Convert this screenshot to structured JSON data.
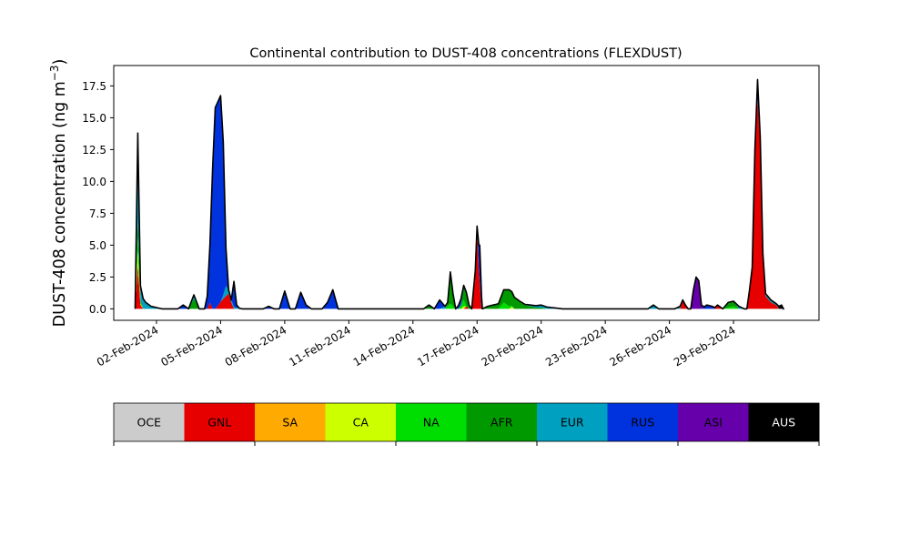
{
  "chart_data": {
    "type": "area",
    "title": "Continental contribution to DUST-408 concentrations (FLEXDUST)",
    "ylabel": "DUST-408 concentration (ng m",
    "ylabel_sup": "−3",
    "ylabel_close": ")",
    "xlabel": "",
    "ylim": [
      -0.9,
      19.1
    ],
    "xlim": [
      "2024-01-31",
      "2024-03-04"
    ],
    "grid": false,
    "y_ticks": [
      0.0,
      2.5,
      5.0,
      7.5,
      10.0,
      12.5,
      15.0,
      17.5
    ],
    "y_tick_labels": [
      "0.0",
      "2.5",
      "5.0",
      "7.5",
      "10.0",
      "12.5",
      "15.0",
      "17.5"
    ],
    "x_ticks": [
      "2024-02-02",
      "2024-02-05",
      "2024-02-08",
      "2024-02-11",
      "2024-02-14",
      "2024-02-17",
      "2024-02-20",
      "2024-02-23",
      "2024-02-26",
      "2024-02-29"
    ],
    "x_tick_labels": [
      "02-Feb-2024",
      "05-Feb-2024",
      "08-Feb-2024",
      "11-Feb-2024",
      "14-Feb-2024",
      "17-Feb-2024",
      "20-Feb-2024",
      "23-Feb-2024",
      "26-Feb-2024",
      "29-Feb-2024"
    ],
    "categories": [
      "OCE",
      "GNL",
      "SA",
      "CA",
      "NA",
      "AFR",
      "EUR",
      "RUS",
      "ASI",
      "AUS"
    ],
    "colors": [
      "#cccccc",
      "#e60000",
      "#ffaa00",
      "#ccff00",
      "#00dd00",
      "#009900",
      "#00a0c0",
      "#0033dd",
      "#6600aa",
      "#000000"
    ],
    "legend_text_colors": [
      "#000000",
      "#000000",
      "#000000",
      "#000000",
      "#000000",
      "#000000",
      "#000000",
      "#000000",
      "#000000",
      "#ffffff"
    ],
    "legend_placement": "bottom",
    "series": [
      {
        "name": "GNL",
        "points": [
          [
            "2024-02-01T00:00",
            0
          ],
          [
            "2024-02-01T03:00",
            3.5
          ],
          [
            "2024-02-01T06:00",
            0.3
          ],
          [
            "2024-02-01T09:00",
            0
          ],
          [
            "2024-02-04T09:00",
            0
          ],
          [
            "2024-02-04T12:00",
            0.5
          ],
          [
            "2024-02-04T15:00",
            0
          ],
          [
            "2024-02-04T18:00",
            0
          ],
          [
            "2024-02-05T03:00",
            0.8
          ],
          [
            "2024-02-05T09:00",
            1.2
          ],
          [
            "2024-02-05T12:00",
            0.5
          ],
          [
            "2024-02-05T15:00",
            0
          ],
          [
            "2024-02-16T09:00",
            0
          ],
          [
            "2024-02-16T12:00",
            0.2
          ],
          [
            "2024-02-16T15:00",
            0
          ],
          [
            "2024-02-16T18:00",
            0
          ],
          [
            "2024-02-16T22:00",
            3.0
          ],
          [
            "2024-02-17T00:00",
            6.5
          ],
          [
            "2024-02-17T02:00",
            3.0
          ],
          [
            "2024-02-17T05:00",
            0
          ],
          [
            "2024-02-26T12:00",
            0
          ],
          [
            "2024-02-26T15:00",
            0.6
          ],
          [
            "2024-02-26T21:00",
            0
          ],
          [
            "2024-02-28T03:00",
            0
          ],
          [
            "2024-02-28T06:00",
            0.3
          ],
          [
            "2024-02-28T12:00",
            0
          ],
          [
            "2024-02-29T15:00",
            0
          ],
          [
            "2024-02-29T21:00",
            3.0
          ],
          [
            "2024-03-01T00:00",
            12.0
          ],
          [
            "2024-03-01T03:00",
            16.5
          ],
          [
            "2024-03-01T06:00",
            13.0
          ],
          [
            "2024-03-01T09:00",
            4.0
          ],
          [
            "2024-03-01T12:00",
            1.0
          ],
          [
            "2024-03-01T18:00",
            0.5
          ],
          [
            "2024-03-02T00:00",
            0.3
          ],
          [
            "2024-03-02T03:00",
            0
          ]
        ]
      },
      {
        "name": "CA",
        "points": [
          [
            "2024-02-01T00:00",
            0
          ],
          [
            "2024-02-01T03:00",
            1.0
          ],
          [
            "2024-02-01T06:00",
            0.1
          ],
          [
            "2024-02-01T09:00",
            0
          ],
          [
            "2024-02-16T06:00",
            0
          ],
          [
            "2024-02-16T09:00",
            0.2
          ],
          [
            "2024-02-16T12:00",
            0
          ],
          [
            "2024-02-18T12:00",
            0
          ],
          [
            "2024-02-18T15:00",
            0.15
          ],
          [
            "2024-02-18T18:00",
            0
          ]
        ]
      },
      {
        "name": "NA",
        "points": [
          [
            "2024-02-01T00:00",
            0
          ],
          [
            "2024-02-01T03:00",
            1.0
          ],
          [
            "2024-02-01T06:00",
            0.1
          ],
          [
            "2024-02-01T09:00",
            0
          ],
          [
            "2024-02-15T12:00",
            0
          ],
          [
            "2024-02-15T18:00",
            0.4
          ],
          [
            "2024-02-16T00:00",
            0
          ],
          [
            "2024-02-16T03:00",
            0
          ],
          [
            "2024-02-16T06:00",
            0.3
          ],
          [
            "2024-02-16T09:00",
            0.5
          ],
          [
            "2024-02-16T12:00",
            0
          ],
          [
            "2024-02-18T00:00",
            0
          ],
          [
            "2024-02-18T06:00",
            0.5
          ],
          [
            "2024-02-18T12:00",
            0.2
          ],
          [
            "2024-02-18T18:00",
            0
          ],
          [
            "2024-02-28T12:00",
            0
          ],
          [
            "2024-02-28T18:00",
            0.1
          ],
          [
            "2024-02-29T00:00",
            0.2
          ],
          [
            "2024-02-29T06:00",
            0
          ]
        ]
      },
      {
        "name": "AFR",
        "points": [
          [
            "2024-02-01T00:00",
            0
          ],
          [
            "2024-02-01T03:00",
            1.5
          ],
          [
            "2024-02-01T06:00",
            0.2
          ],
          [
            "2024-02-01T09:00",
            0
          ],
          [
            "2024-02-03T12:00",
            0
          ],
          [
            "2024-02-03T18:00",
            0.8
          ],
          [
            "2024-02-04T00:00",
            0
          ],
          [
            "2024-02-14T12:00",
            0
          ],
          [
            "2024-02-14T18:00",
            0.3
          ],
          [
            "2024-02-15T00:00",
            0
          ],
          [
            "2024-02-15T12:00",
            0
          ],
          [
            "2024-02-15T15:00",
            0.2
          ],
          [
            "2024-02-15T18:00",
            2.5
          ],
          [
            "2024-02-15T21:00",
            1.0
          ],
          [
            "2024-02-16T00:00",
            0
          ],
          [
            "2024-02-16T06:00",
            0
          ],
          [
            "2024-02-16T09:00",
            0.9
          ],
          [
            "2024-02-16T12:00",
            1.1
          ],
          [
            "2024-02-16T15:00",
            0.3
          ],
          [
            "2024-02-16T18:00",
            0
          ],
          [
            "2024-02-17T06:00",
            0
          ],
          [
            "2024-02-17T12:00",
            0.2
          ],
          [
            "2024-02-17T18:00",
            0.3
          ],
          [
            "2024-02-18T00:00",
            0.4
          ],
          [
            "2024-02-18T06:00",
            1.0
          ],
          [
            "2024-02-18T12:00",
            1.3
          ],
          [
            "2024-02-18T18:00",
            0.9
          ],
          [
            "2024-02-19T00:00",
            0.6
          ],
          [
            "2024-02-19T06:00",
            0.3
          ],
          [
            "2024-02-19T12:00",
            0.2
          ],
          [
            "2024-02-19T18:00",
            0.1
          ],
          [
            "2024-02-20T00:00",
            0.1
          ],
          [
            "2024-02-20T06:00",
            0
          ],
          [
            "2024-02-28T12:00",
            0
          ],
          [
            "2024-02-28T18:00",
            0.4
          ],
          [
            "2024-02-29T00:00",
            0.4
          ],
          [
            "2024-02-29T06:00",
            0
          ]
        ]
      },
      {
        "name": "EUR",
        "points": [
          [
            "2024-02-01T00:00",
            0
          ],
          [
            "2024-02-01T03:00",
            3.5
          ],
          [
            "2024-02-01T06:00",
            1.0
          ],
          [
            "2024-02-01T09:00",
            0.8
          ],
          [
            "2024-02-01T12:00",
            0.5
          ],
          [
            "2024-02-01T18:00",
            0.2
          ],
          [
            "2024-02-02T00:00",
            0.1
          ],
          [
            "2024-02-02T06:00",
            0
          ],
          [
            "2024-02-03T12:00",
            0
          ],
          [
            "2024-02-03T18:00",
            0.2
          ],
          [
            "2024-02-04T00:00",
            0
          ],
          [
            "2024-02-05T00:00",
            0
          ],
          [
            "2024-02-05T03:00",
            0.3
          ],
          [
            "2024-02-05T06:00",
            0.8
          ],
          [
            "2024-02-05T09:00",
            0.3
          ],
          [
            "2024-02-05T12:00",
            0.2
          ],
          [
            "2024-02-05T18:00",
            0.1
          ],
          [
            "2024-02-06T00:00",
            0
          ],
          [
            "2024-02-15T06:00",
            0
          ],
          [
            "2024-02-15T12:00",
            0.2
          ],
          [
            "2024-02-15T18:00",
            0
          ],
          [
            "2024-02-19T00:00",
            0
          ],
          [
            "2024-02-19T12:00",
            0.1
          ],
          [
            "2024-02-20T00:00",
            0.2
          ],
          [
            "2024-02-20T12:00",
            0.1
          ],
          [
            "2024-02-21T00:00",
            0
          ],
          [
            "2024-02-25T00:00",
            0
          ],
          [
            "2024-02-25T06:00",
            0.3
          ],
          [
            "2024-02-25T12:00",
            0
          ],
          [
            "2024-02-26T06:00",
            0
          ],
          [
            "2024-02-26T12:00",
            0.2
          ],
          [
            "2024-02-26T18:00",
            0
          ],
          [
            "2024-02-29T00:00",
            0
          ],
          [
            "2024-02-29T06:00",
            0.2
          ],
          [
            "2024-02-29T12:00",
            0
          ],
          [
            "2024-03-01T06:00",
            0
          ],
          [
            "2024-03-01T12:00",
            0.2
          ],
          [
            "2024-03-01T18:00",
            0.2
          ],
          [
            "2024-03-02T00:00",
            0.1
          ],
          [
            "2024-03-02T03:00",
            0
          ]
        ]
      },
      {
        "name": "RUS",
        "points": [
          [
            "2024-02-01T00:00",
            0
          ],
          [
            "2024-02-01T03:00",
            3.1
          ],
          [
            "2024-02-01T06:00",
            0.1
          ],
          [
            "2024-02-01T09:00",
            0
          ],
          [
            "2024-02-03T00:00",
            0
          ],
          [
            "2024-02-03T06:00",
            0.3
          ],
          [
            "2024-02-03T12:00",
            0
          ],
          [
            "2024-02-03T12:00",
            0
          ],
          [
            "2024-02-03T18:00",
            0.1
          ],
          [
            "2024-02-04T00:00",
            0
          ],
          [
            "2024-02-04T06:00",
            0
          ],
          [
            "2024-02-04T09:00",
            1.0
          ],
          [
            "2024-02-04T12:00",
            4.5
          ],
          [
            "2024-02-04T15:00",
            11.0
          ],
          [
            "2024-02-04T18:00",
            15.8
          ],
          [
            "2024-02-04T21:00",
            16.0
          ],
          [
            "2024-02-05T00:00",
            16.2
          ],
          [
            "2024-02-05T03:00",
            12.0
          ],
          [
            "2024-02-05T06:00",
            3.0
          ],
          [
            "2024-02-05T09:00",
            0
          ],
          [
            "2024-02-05T12:00",
            0
          ],
          [
            "2024-02-05T15:00",
            2.0
          ],
          [
            "2024-02-05T18:00",
            0.2
          ],
          [
            "2024-02-05T21:00",
            0
          ],
          [
            "2024-02-07T00:00",
            0
          ],
          [
            "2024-02-07T06:00",
            0.2
          ],
          [
            "2024-02-07T12:00",
            0
          ],
          [
            "2024-02-07T18:00",
            0
          ],
          [
            "2024-02-08T00:00",
            1.4
          ],
          [
            "2024-02-08T06:00",
            0
          ],
          [
            "2024-02-08T12:00",
            0
          ],
          [
            "2024-02-08T18:00",
            1.3
          ],
          [
            "2024-02-09T00:00",
            0.3
          ],
          [
            "2024-02-09T06:00",
            0
          ],
          [
            "2024-02-09T18:00",
            0
          ],
          [
            "2024-02-10T00:00",
            0.5
          ],
          [
            "2024-02-10T06:00",
            1.5
          ],
          [
            "2024-02-10T12:00",
            0
          ],
          [
            "2024-02-15T00:00",
            0
          ],
          [
            "2024-02-15T06:00",
            0.7
          ],
          [
            "2024-02-15T12:00",
            0
          ],
          [
            "2024-02-16T00:00",
            0
          ],
          [
            "2024-02-16T06:00",
            0.3
          ],
          [
            "2024-02-16T12:00",
            0
          ],
          [
            "2024-02-17T00:00",
            0
          ],
          [
            "2024-02-17T03:00",
            3.0
          ],
          [
            "2024-02-17T06:00",
            0
          ],
          [
            "2024-02-27T12:00",
            0
          ],
          [
            "2024-02-27T18:00",
            0.3
          ],
          [
            "2024-02-28T00:00",
            0.2
          ],
          [
            "2024-02-28T06:00",
            0
          ],
          [
            "2024-02-29T18:00",
            0
          ],
          [
            "2024-03-01T00:00",
            0.5
          ],
          [
            "2024-03-01T03:00",
            1.5
          ],
          [
            "2024-03-01T06:00",
            0.5
          ],
          [
            "2024-03-01T12:00",
            0
          ]
        ]
      },
      {
        "name": "ASI",
        "points": [
          [
            "2024-02-16T00:00",
            0
          ],
          [
            "2024-02-16T06:00",
            0.2
          ],
          [
            "2024-02-16T12:00",
            0
          ],
          [
            "2024-02-27T00:00",
            0
          ],
          [
            "2024-02-27T03:00",
            1.5
          ],
          [
            "2024-02-27T06:00",
            2.5
          ],
          [
            "2024-02-27T09:00",
            2.2
          ],
          [
            "2024-02-27T12:00",
            0.3
          ],
          [
            "2024-02-27T15:00",
            0
          ]
        ]
      },
      {
        "name": "AUS",
        "points": [
          [
            "2024-02-01T00:00",
            0
          ],
          [
            "2024-02-01T03:00",
            0.2
          ],
          [
            "2024-02-01T06:00",
            0
          ],
          [
            "2024-03-02T00:00",
            0
          ],
          [
            "2024-03-02T03:00",
            0.2
          ],
          [
            "2024-03-02T06:00",
            0.3
          ],
          [
            "2024-03-02T08:00",
            0
          ]
        ]
      }
    ]
  }
}
